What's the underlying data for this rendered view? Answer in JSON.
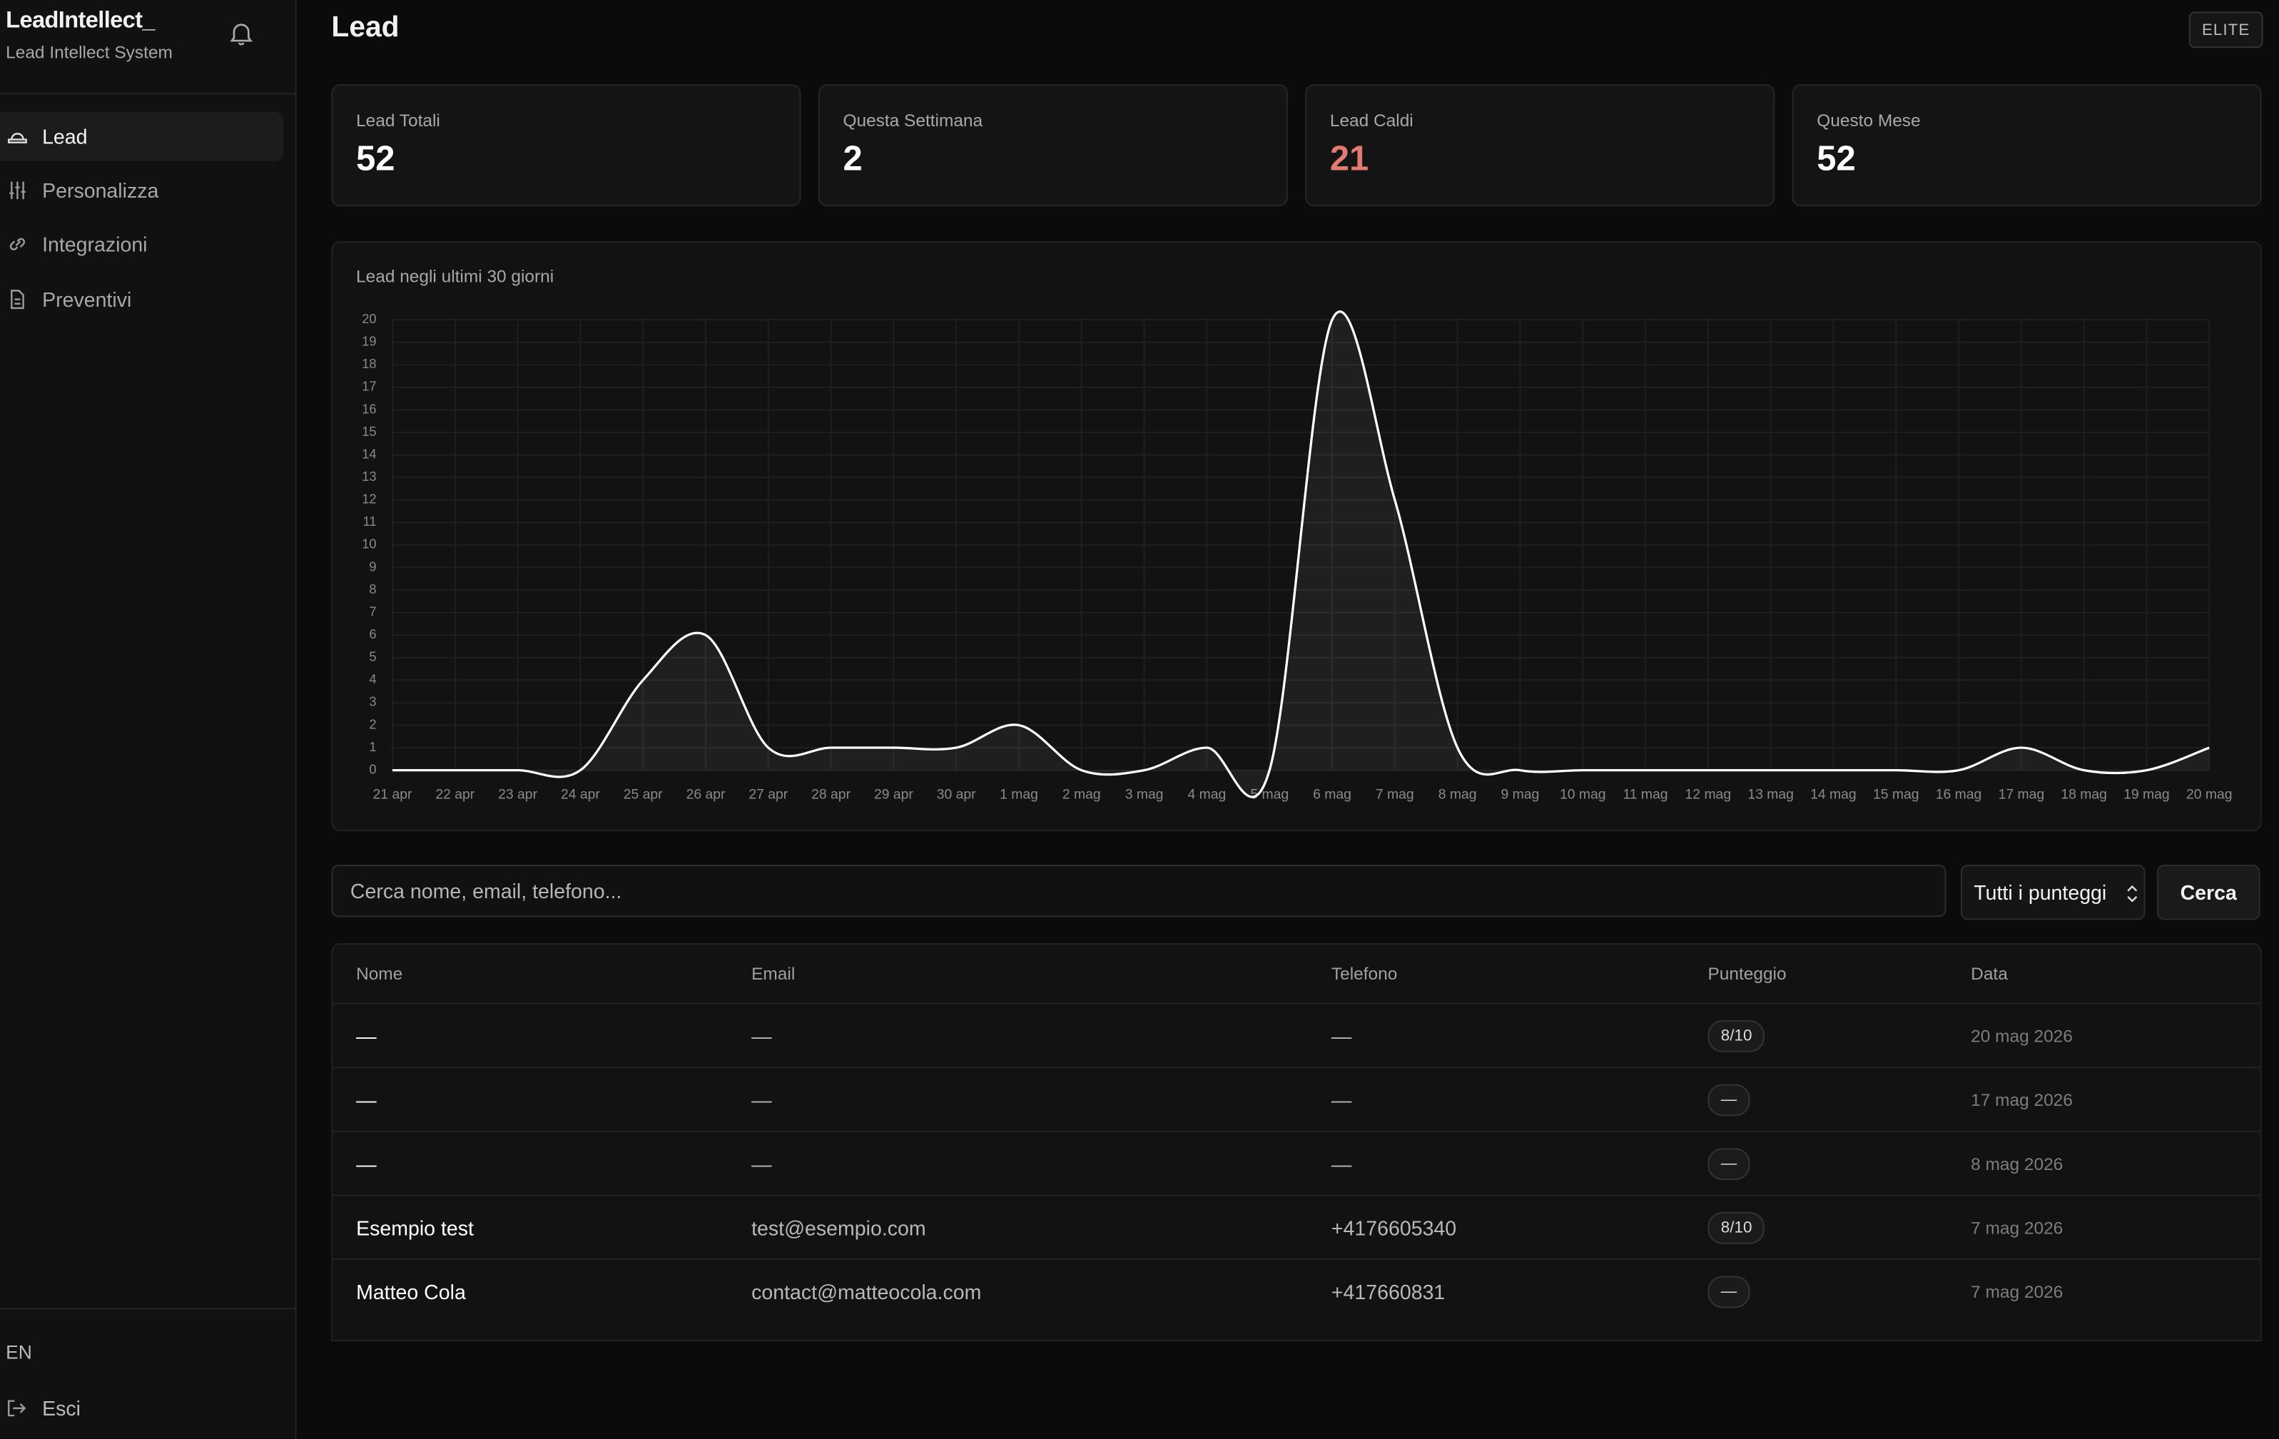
{
  "sidebar": {
    "brand": "LeadIntellect_",
    "subtitle": "Lead Intellect System",
    "nav": [
      "Lead",
      "Personalizza",
      "Integrazioni",
      "Preventivi"
    ],
    "language": "EN",
    "logout": "Esci"
  },
  "header": {
    "title": "Lead",
    "plan": "ELITE"
  },
  "stats": [
    {
      "label": "Lead Totali",
      "value": 52
    },
    {
      "label": "Questa Settimana",
      "value": 2
    },
    {
      "label": "Lead Caldi",
      "value": 21
    },
    {
      "label": "Questo Mese",
      "value": 52
    }
  ],
  "chart_data": {
    "type": "line",
    "title": "Lead negli ultimi 30 giorni",
    "categories": [
      "21 apr",
      "22 apr",
      "23 apr",
      "24 apr",
      "25 apr",
      "26 apr",
      "27 apr",
      "28 apr",
      "29 apr",
      "30 apr",
      "1 mag",
      "2 mag",
      "3 mag",
      "4 mag",
      "5 mag",
      "6 mag",
      "7 mag",
      "8 mag",
      "9 mag",
      "10 mag",
      "11 mag",
      "12 mag",
      "13 mag",
      "14 mag",
      "15 mag",
      "16 mag",
      "17 mag",
      "18 mag",
      "19 mag",
      "20 mag"
    ],
    "values": [
      0,
      0,
      0,
      0,
      4,
      6,
      1,
      1,
      1,
      1,
      2,
      0,
      0,
      1,
      0,
      20,
      12,
      1,
      0,
      0,
      0,
      0,
      0,
      0,
      0,
      0,
      1,
      0,
      0,
      1
    ],
    "color": "#ffffff",
    "ylim": [
      0,
      20
    ],
    "yticks": [
      0,
      1,
      2,
      3,
      4,
      5,
      6,
      7,
      8,
      9,
      10,
      11,
      12,
      13,
      14,
      15,
      16,
      17,
      18,
      19,
      20
    ],
    "grid": true
  },
  "search": {
    "placeholder": "Cerca nome, email, telefono...",
    "filter": "Tutti i punteggi",
    "button": "Cerca"
  },
  "table": {
    "columns": [
      "Nome",
      "Email",
      "Telefono",
      "Punteggio",
      "Data"
    ],
    "rows": [
      [
        "—",
        "—",
        "—",
        "8/10",
        "20 mag 2026"
      ],
      [
        "—",
        "—",
        "—",
        "—",
        "17 mag 2026"
      ],
      [
        "—",
        "—",
        "—",
        "—",
        "8 mag 2026"
      ],
      [
        "Esempio test",
        "test@esempio.com",
        "+4176605340",
        "8/10",
        "7 mag 2026"
      ],
      [
        "Matteo Cola",
        "contact@matteocola.com",
        "+417660831",
        "—",
        "7 mag 2026"
      ]
    ]
  }
}
